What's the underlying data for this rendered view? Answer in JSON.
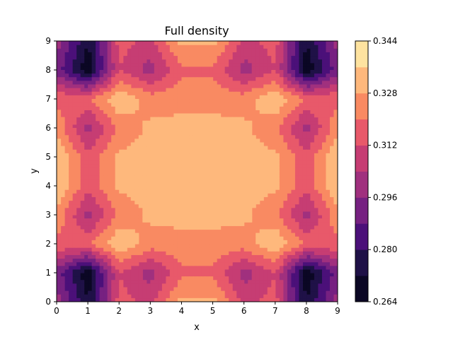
{
  "chart_data": {
    "type": "heatmap",
    "subtype": "filled-contour",
    "title": "Full density",
    "xlabel": "x",
    "ylabel": "y",
    "xlim": [
      0,
      9
    ],
    "ylim": [
      0,
      9
    ],
    "x_ticks": [
      "0",
      "1",
      "2",
      "3",
      "4",
      "5",
      "6",
      "7",
      "8",
      "9"
    ],
    "y_ticks": [
      "0",
      "1",
      "2",
      "3",
      "4",
      "5",
      "6",
      "7",
      "8",
      "9"
    ],
    "colormap": "magma",
    "colorbar_ticks": [
      "0.264",
      "0.280",
      "0.296",
      "0.312",
      "0.328",
      "0.344"
    ],
    "levels": [
      0.264,
      0.272,
      0.28,
      0.288,
      0.296,
      0.304,
      0.312,
      0.32,
      0.328,
      0.336,
      0.344
    ],
    "level_colors": [
      "#000004",
      "#221150",
      "#5f187f",
      "#982d80",
      "#d3436e",
      "#f8765c",
      "#febb81",
      "#fcfdbf"
    ],
    "band_colors": [
      "#0b0724",
      "#1f1147",
      "#4b1079",
      "#762181",
      "#a0307e",
      "#c63d73",
      "#e8596a",
      "#f98a62",
      "#feb87c",
      "#fee3a0"
    ],
    "grid_x": [
      0,
      1,
      2,
      3,
      4,
      5,
      6,
      7,
      8,
      9
    ],
    "grid_y": [
      0,
      1,
      2,
      3,
      4,
      5,
      6,
      7,
      8,
      9
    ],
    "z": [
      [
        0.3,
        0.272,
        0.315,
        0.31,
        0.33,
        0.33,
        0.31,
        0.315,
        0.272,
        0.3
      ],
      [
        0.292,
        0.265,
        0.312,
        0.3,
        0.318,
        0.318,
        0.3,
        0.312,
        0.265,
        0.292
      ],
      [
        0.318,
        0.318,
        0.335,
        0.324,
        0.326,
        0.326,
        0.324,
        0.335,
        0.318,
        0.318
      ],
      [
        0.326,
        0.3,
        0.322,
        0.33,
        0.33,
        0.33,
        0.33,
        0.322,
        0.3,
        0.326
      ],
      [
        0.335,
        0.315,
        0.33,
        0.33,
        0.33,
        0.33,
        0.33,
        0.33,
        0.315,
        0.335
      ],
      [
        0.335,
        0.315,
        0.33,
        0.33,
        0.33,
        0.33,
        0.33,
        0.33,
        0.315,
        0.335
      ],
      [
        0.326,
        0.3,
        0.322,
        0.33,
        0.33,
        0.33,
        0.33,
        0.322,
        0.3,
        0.326
      ],
      [
        0.318,
        0.318,
        0.335,
        0.324,
        0.326,
        0.326,
        0.324,
        0.335,
        0.318,
        0.318
      ],
      [
        0.292,
        0.265,
        0.312,
        0.3,
        0.318,
        0.318,
        0.3,
        0.312,
        0.265,
        0.292
      ],
      [
        0.3,
        0.272,
        0.315,
        0.31,
        0.33,
        0.33,
        0.31,
        0.315,
        0.272,
        0.3
      ]
    ]
  }
}
